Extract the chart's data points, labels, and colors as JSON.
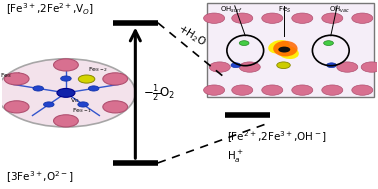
{
  "bg_color": "#ffffff",
  "left_label_top": "[Fe$^{3+}$,2Fe$^{2+}$,V$_O$]",
  "left_label_bottom": "[3Fe$^{3+}$,O$^{2-}$]",
  "right_label_bottom_line1": "[Fe$^{2+}$,2Fe$^{3+}$,OH$^-$]",
  "right_label_bottom_line2": "H$^+_a$",
  "arrow_label": "+H$_2$O",
  "side_label": "$-\\frac{1}{2}$O$_2$",
  "fs_main": 7.5,
  "fs_small": 5.0,
  "fs_tiny": 4.5
}
